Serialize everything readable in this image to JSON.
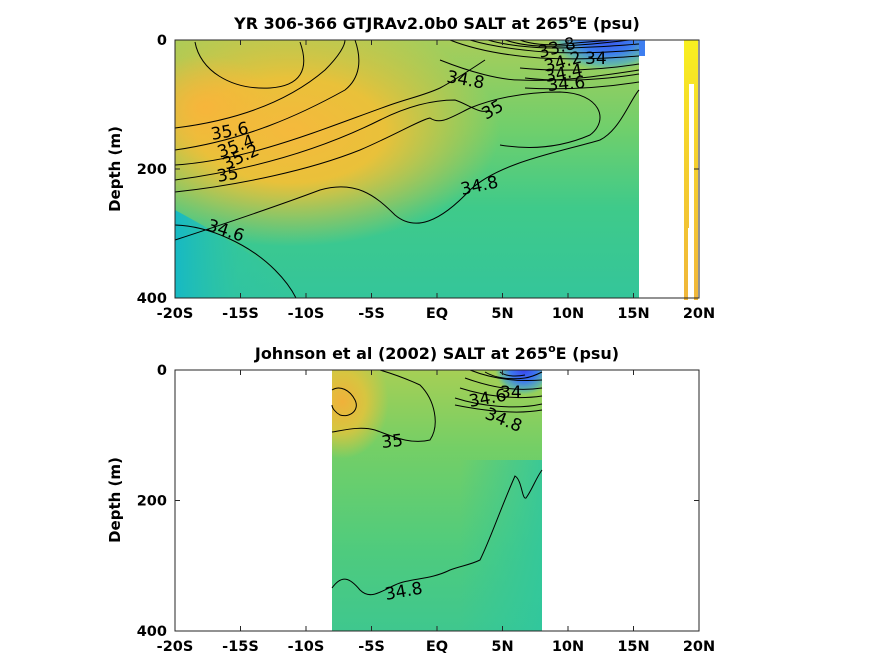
{
  "chart_data": [
    {
      "type": "heatmap",
      "title_main": "YR 306-366 GTJRAv2.0b0 SALT at 265",
      "title_sup": "o",
      "title_tail": "E (psu)",
      "ylabel": "Depth (m)",
      "xlim": [
        -20,
        20
      ],
      "ylim": [
        0,
        400
      ],
      "xticks": [
        "-20S",
        "-15S",
        "-10S",
        "-5S",
        "EQ",
        "5N",
        "10N",
        "15N",
        "20N"
      ],
      "yticks": [
        "0",
        "200",
        "400"
      ],
      "data_extent_lat": [
        -20,
        15.5
      ],
      "contour_labels": [
        {
          "text": "33.8",
          "lat": 9.5,
          "depth": 10
        },
        {
          "text": "34",
          "lat": 12.2,
          "depth": 16
        },
        {
          "text": "34.2",
          "lat": 10.2,
          "depth": 28
        },
        {
          "text": "34.4",
          "lat": 10.2,
          "depth": 42
        },
        {
          "text": "34.6",
          "lat": 10.4,
          "depth": 58
        },
        {
          "text": "34.8",
          "lat": 1.2,
          "depth": 52
        },
        {
          "text": "35",
          "lat": 2.5,
          "depth": 102
        },
        {
          "text": "35.6",
          "lat": -16.8,
          "depth": 135
        },
        {
          "text": "35.4",
          "lat": -15.6,
          "depth": 155
        },
        {
          "text": "35.2",
          "lat": -15.5,
          "depth": 172
        },
        {
          "text": "35",
          "lat": -17.7,
          "depth": 196
        },
        {
          "text": "34.8",
          "lat": 1.8,
          "depth": 218
        },
        {
          "text": "34.6",
          "lat": -17.9,
          "depth": 294
        }
      ]
    },
    {
      "type": "heatmap",
      "title_main": "Johnson et al (2002) SALT at 265",
      "title_sup": "o",
      "title_tail": "E (psu)",
      "ylabel": "Depth (m)",
      "xlim": [
        -20,
        20
      ],
      "ylim": [
        0,
        400
      ],
      "xticks": [
        "-20S",
        "-15S",
        "-10S",
        "-5S",
        "EQ",
        "5N",
        "10N",
        "15N",
        "20N"
      ],
      "yticks": [
        "0",
        "200",
        "400"
      ],
      "data_extent_lat": [
        -8,
        8
      ],
      "contour_labels": [
        {
          "text": "34",
          "lat": 5.5,
          "depth": 32
        },
        {
          "text": "34.6",
          "lat": 4.2,
          "depth": 48
        },
        {
          "text": "34.8",
          "lat": 5.0,
          "depth": 82
        },
        {
          "text": "35",
          "lat": -3.1,
          "depth": 110
        },
        {
          "text": "34.8",
          "lat": -2.2,
          "depth": 338
        }
      ]
    }
  ]
}
